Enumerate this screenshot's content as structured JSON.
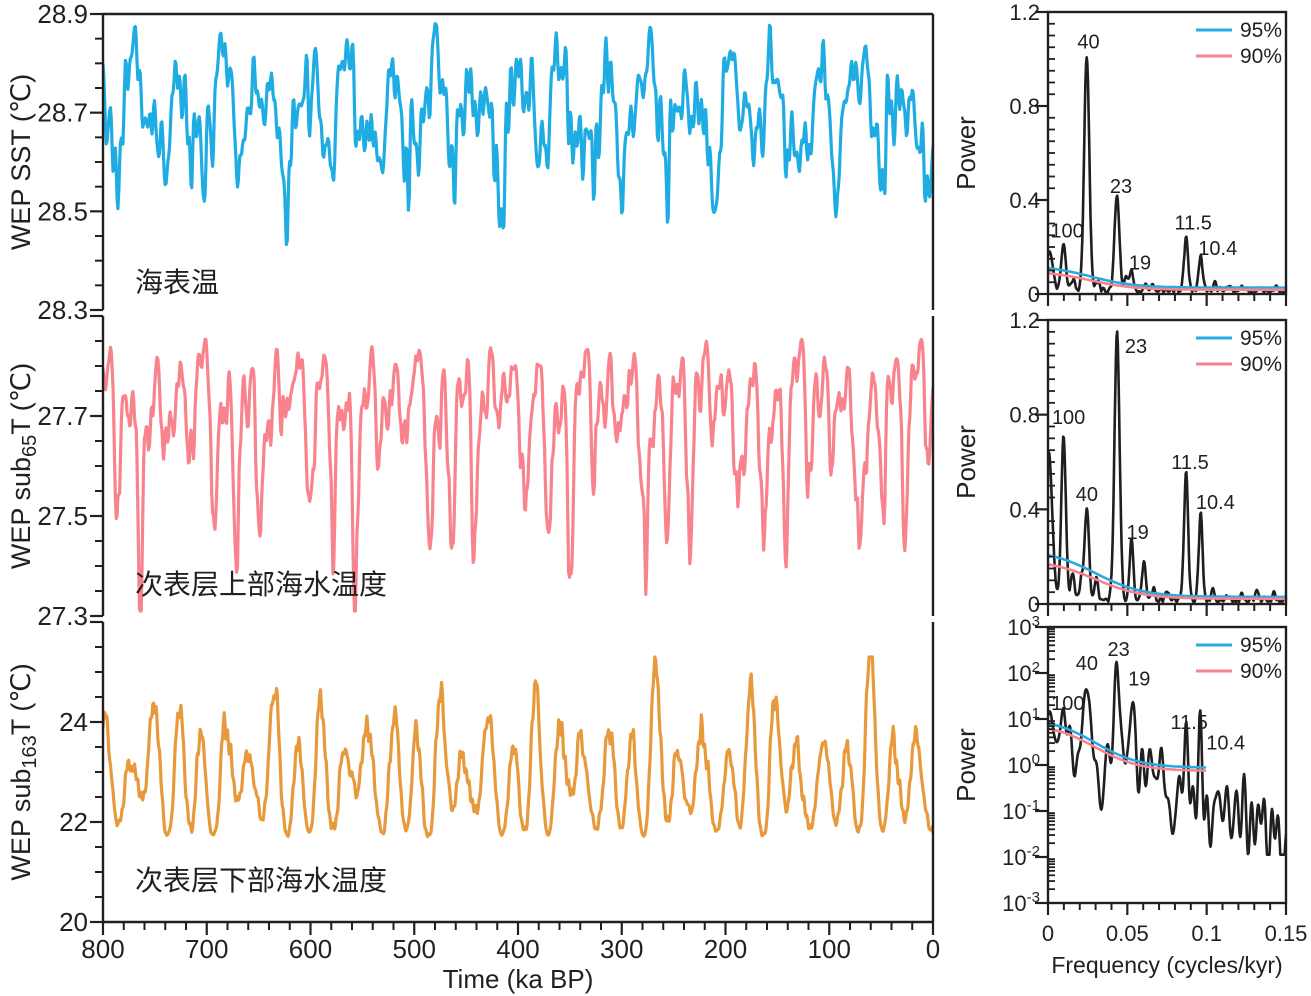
{
  "colors": {
    "sst": "#1FACE3",
    "sub65": "#F8838D",
    "sub163": "#E8993C",
    "spectrum": "#1F1F1F",
    "sig95": "#29ABE2",
    "sig90": "#F8838D",
    "text": "#231F20",
    "axis": "#231F20",
    "background": "#FFFFFF"
  },
  "time_axis": {
    "title": "Time (ka BP)",
    "min": 0,
    "max": 800,
    "reversed": true,
    "tick_labels": [
      "800",
      "700",
      "600",
      "500",
      "400",
      "300",
      "200",
      "100",
      "0"
    ],
    "major_step": 100,
    "minor_step": 20
  },
  "freq_axis": {
    "title": "Frequency (cycles/kyr)",
    "min": 0,
    "max": 0.15,
    "tick_labels": [
      "0",
      "0.05",
      "0.1",
      "0.15"
    ],
    "major_step": 0.05,
    "minor_step": 0.01
  },
  "chart_data": [
    {
      "id": "wep-sst",
      "type": "line",
      "role": "time-series",
      "ylabel": {
        "pre": "WEP SST",
        "sub": "",
        "post": " (℃)"
      },
      "annotation": "海表温",
      "color_key": "sst",
      "ylim": [
        28.3,
        28.9
      ],
      "ytick_labels": [
        "28.9",
        "28.7",
        "28.5",
        "28.3"
      ],
      "y_major_step": 0.2,
      "y_minor_step": 0.05,
      "synth": {
        "seed": 11,
        "mean": 28.7,
        "clip": [
          28.42,
          28.88
        ],
        "skew": 0.8,
        "noise": 0.012,
        "components": [
          [
            100,
            0.032
          ],
          [
            41,
            0.085
          ],
          [
            29,
            0.025
          ],
          [
            23,
            0.045
          ],
          [
            19,
            0.018
          ],
          [
            11.5,
            0.032
          ],
          [
            10.4,
            0.02
          ],
          [
            7.3,
            0.012
          ],
          [
            5.1,
            0.009
          ]
        ]
      }
    },
    {
      "id": "wep-sub65t",
      "type": "line",
      "role": "time-series",
      "ylabel": {
        "pre": "WEP sub",
        "sub": "65",
        "post": "T (℃)"
      },
      "annotation": "次表层上部海水温度",
      "color_key": "sub65",
      "ylim": [
        27.3,
        27.9
      ],
      "ytick_labels": [
        "27.7",
        "27.5",
        "27.3"
      ],
      "y_major_step": 0.2,
      "y_minor_step": 0.05,
      "synth": {
        "seed": 23,
        "mean": 27.7,
        "clip": [
          27.31,
          27.895
        ],
        "skew": 1.5,
        "noise": 0.01,
        "components": [
          [
            100,
            0.05
          ],
          [
            41,
            0.042
          ],
          [
            23,
            0.105
          ],
          [
            19,
            0.032
          ],
          [
            11.5,
            0.05
          ],
          [
            10.4,
            0.034
          ],
          [
            6.4,
            0.014
          ],
          [
            4.7,
            0.01
          ]
        ]
      }
    },
    {
      "id": "wep-sub163t",
      "type": "line",
      "role": "time-series",
      "ylabel": {
        "pre": "WEP sub",
        "sub": "163",
        "post": "T (℃)"
      },
      "annotation": "次表层下部海水温度",
      "color_key": "sub163",
      "ylim": [
        20,
        26
      ],
      "ytick_labels": [
        "24",
        "22",
        "20"
      ],
      "y_major_step": 2,
      "y_minor_step": 0.5,
      "synth": {
        "seed": 5,
        "mean": 22.75,
        "clip": [
          21.35,
          25.3
        ],
        "skew": -0.23,
        "noise": 0.05,
        "components": [
          [
            100,
            0.2
          ],
          [
            41,
            0.4
          ],
          [
            29,
            0.12
          ],
          [
            23,
            1.0
          ],
          [
            19,
            0.28
          ],
          [
            11.5,
            0.1
          ],
          [
            6.1,
            0.05
          ]
        ]
      }
    },
    {
      "id": "sst-spectrum",
      "type": "line",
      "role": "power-spectrum",
      "scale": "linear",
      "ylabel": "Power",
      "ylim": [
        0,
        1.2
      ],
      "ytick_labels": [
        "1.2",
        "0.8",
        "0.4",
        "0"
      ],
      "y_major_step": 0.4,
      "y_minor_step": 0.05,
      "legend": [
        {
          "label": "95%",
          "color_key": "sig95"
        },
        {
          "label": "90%",
          "color_key": "sig90"
        }
      ],
      "peaks_labeled": [
        {
          "label": "100",
          "f": 0.0098,
          "power": 0.21
        },
        {
          "label": "40",
          "f": 0.0244,
          "power": 1.02
        },
        {
          "label": "23",
          "f": 0.0435,
          "power": 0.41
        },
        {
          "label": "19",
          "f": 0.0526,
          "power": 0.1
        },
        {
          "label": "11.5",
          "f": 0.087,
          "power": 0.22
        },
        {
          "label": "10.4",
          "f": 0.0962,
          "power": 0.15
        }
      ],
      "annotations": [
        {
          "label": "100",
          "f": 0.012,
          "power": 0.27
        },
        {
          "label": "40",
          "f": 0.0255,
          "power": 1.075
        },
        {
          "label": "23",
          "f": 0.046,
          "power": 0.46
        },
        {
          "label": "19",
          "f": 0.058,
          "power": 0.135
        },
        {
          "label": "11.5",
          "f": 0.0915,
          "power": 0.305
        },
        {
          "label": "10.4",
          "f": 0.107,
          "power": 0.195
        }
      ],
      "render": {
        "floor": 0.006,
        "noise_seed": 31,
        "noise_amp": 0.006,
        "bumps": [
          [
            0.001,
            0.17,
            0.002
          ],
          [
            0.0098,
            0.205,
            0.0014
          ],
          [
            0.016,
            0.05,
            0.0012
          ],
          [
            0.0244,
            1.0,
            0.0016
          ],
          [
            0.031,
            0.04,
            0.0012
          ],
          [
            0.0435,
            0.41,
            0.0015
          ],
          [
            0.0495,
            0.06,
            0.001
          ],
          [
            0.0526,
            0.095,
            0.0011
          ],
          [
            0.0615,
            0.035,
            0.0011
          ],
          [
            0.066,
            0.03,
            0.001
          ],
          [
            0.087,
            0.22,
            0.0013
          ],
          [
            0.0962,
            0.15,
            0.0012
          ],
          [
            0.105,
            0.03,
            0.001
          ],
          [
            0.113,
            0.02,
            0.001
          ],
          [
            0.1225,
            0.018,
            0.001
          ],
          [
            0.1335,
            0.015,
            0.001
          ],
          [
            0.1435,
            0.015,
            0.001
          ]
        ]
      },
      "significance": {
        "c95": {
          "a": 0.095,
          "c": 0.027,
          "m": 0.027,
          "s": 0.014,
          "fmax": 0.15
        },
        "c90": {
          "a": 0.08,
          "c": 0.018,
          "m": 0.027,
          "s": 0.014,
          "fmax": 0.15
        }
      }
    },
    {
      "id": "sub65t-spectrum",
      "type": "line",
      "role": "power-spectrum",
      "scale": "linear",
      "ylabel": "Power",
      "ylim": [
        0,
        1.2
      ],
      "ytick_labels": [
        "1.2",
        "0.8",
        "0.4",
        "0"
      ],
      "y_major_step": 0.4,
      "y_minor_step": 0.05,
      "legend": [
        {
          "label": "95%",
          "color_key": "sig95"
        },
        {
          "label": "90%",
          "color_key": "sig90"
        }
      ],
      "peaks_labeled": [
        {
          "label": "100",
          "f": 0.0098,
          "power": 0.72
        },
        {
          "label": "40",
          "f": 0.0244,
          "power": 0.4
        },
        {
          "label": "23",
          "f": 0.0435,
          "power": 1.15
        },
        {
          "label": "19",
          "f": 0.0526,
          "power": 0.26
        },
        {
          "label": "11.5",
          "f": 0.087,
          "power": 0.54
        },
        {
          "label": "10.4",
          "f": 0.0962,
          "power": 0.37
        }
      ],
      "annotations": [
        {
          "label": "100",
          "f": 0.013,
          "power": 0.79
        },
        {
          "label": "40",
          "f": 0.0245,
          "power": 0.465
        },
        {
          "label": "23",
          "f": 0.0555,
          "power": 1.09
        },
        {
          "label": "19",
          "f": 0.0565,
          "power": 0.305
        },
        {
          "label": "11.5",
          "f": 0.0895,
          "power": 0.6
        },
        {
          "label": "10.4",
          "f": 0.1055,
          "power": 0.43
        }
      ],
      "render": {
        "floor": 0.006,
        "noise_seed": 47,
        "noise_amp": 0.006,
        "bumps": [
          [
            0.0005,
            0.62,
            0.0022
          ],
          [
            0.0098,
            0.7,
            0.0014
          ],
          [
            0.0155,
            0.12,
            0.0012
          ],
          [
            0.021,
            0.09,
            0.001
          ],
          [
            0.0244,
            0.385,
            0.0014
          ],
          [
            0.0305,
            0.09,
            0.0011
          ],
          [
            0.0435,
            1.13,
            0.0016
          ],
          [
            0.0526,
            0.25,
            0.0012
          ],
          [
            0.0605,
            0.17,
            0.0012
          ],
          [
            0.0665,
            0.05,
            0.001
          ],
          [
            0.0755,
            0.04,
            0.001
          ],
          [
            0.087,
            0.53,
            0.0013
          ],
          [
            0.0962,
            0.36,
            0.0012
          ],
          [
            0.104,
            0.05,
            0.001
          ],
          [
            0.1125,
            0.025,
            0.001
          ],
          [
            0.1225,
            0.02,
            0.001
          ],
          [
            0.1315,
            0.03,
            0.001
          ],
          [
            0.1425,
            0.02,
            0.001
          ]
        ]
      },
      "significance": {
        "c95": {
          "a": 0.2,
          "c": 0.03,
          "m": 0.03,
          "s": 0.015,
          "fmax": 0.15
        },
        "c90": {
          "a": 0.165,
          "c": 0.022,
          "m": 0.03,
          "s": 0.015,
          "fmax": 0.15
        }
      }
    },
    {
      "id": "sub163t-spectrum",
      "type": "line",
      "role": "power-spectrum",
      "scale": "log",
      "ylabel": "Power",
      "ylim_exponents": [
        -3,
        3
      ],
      "ytick_labels": [
        "10³",
        "10²",
        "10¹",
        "10⁰",
        "10⁻¹",
        "10⁻²",
        "10⁻³"
      ],
      "legend": [
        {
          "label": "95%",
          "color_key": "sig95"
        },
        {
          "label": "90%",
          "color_key": "sig90"
        }
      ],
      "peaks_labeled": [
        {
          "label": "100",
          "f": 0.0098,
          "power": 12
        },
        {
          "label": "40",
          "f": 0.0244,
          "power": 85
        },
        {
          "label": "23",
          "f": 0.0435,
          "power": 160
        },
        {
          "label": "19",
          "f": 0.0526,
          "power": 40
        },
        {
          "label": "11.5",
          "f": 0.087,
          "power": 4.2
        },
        {
          "label": "10.4",
          "f": 0.0962,
          "power": 2.7
        }
      ],
      "annotations": [
        {
          "label": "100",
          "f": 0.0125,
          "power": 22
        },
        {
          "label": "40",
          "f": 0.0245,
          "power": 165
        },
        {
          "label": "23",
          "f": 0.0445,
          "power": 330
        },
        {
          "label": "19",
          "f": 0.0575,
          "power": 75
        },
        {
          "label": "11.5",
          "f": 0.089,
          "power": 8.5
        },
        {
          "label": "10.4",
          "f": 0.112,
          "power": 3.1
        }
      ],
      "render": {
        "base0": 0.97,
        "slope": -18,
        "noise_seed": 77,
        "noise_amp": 0.5,
        "bumps": [
          [
            0.0,
            0.1,
            0.003
          ],
          [
            0.0098,
            0.32,
            0.0014
          ],
          [
            0.0244,
            1.35,
            0.0016
          ],
          [
            0.0435,
            1.95,
            0.0016
          ],
          [
            0.0526,
            1.52,
            0.0013
          ],
          [
            0.065,
            0.45,
            0.0012
          ],
          [
            0.0715,
            0.32,
            0.001
          ],
          [
            0.087,
            1.17,
            0.0013
          ],
          [
            0.0962,
            1.16,
            0.0012
          ],
          [
            0.1065,
            0.3,
            0.001
          ],
          [
            0.1135,
            0.35,
            0.001
          ],
          [
            0.1225,
            0.5,
            0.0012
          ],
          [
            0.1315,
            0.45,
            0.0012
          ],
          [
            0.1385,
            0.3,
            0.001
          ],
          [
            0.144,
            0.28,
            0.001
          ],
          [
            0.0055,
            -0.5,
            0.0012
          ],
          [
            0.0175,
            -0.85,
            0.0016
          ],
          [
            0.033,
            -1.2,
            0.002
          ],
          [
            0.0785,
            -1.25,
            0.0013
          ],
          [
            0.102,
            -0.6,
            0.0012
          ],
          [
            0.1475,
            -0.55,
            0.0011
          ]
        ]
      },
      "significance": {
        "c95": {
          "a": 1.08,
          "c": -0.06,
          "m": 0.03,
          "s": 0.014,
          "fmax": 0.1
        },
        "c90": {
          "a": 1.03,
          "c": -0.13,
          "m": 0.03,
          "s": 0.014,
          "fmax": 0.1
        }
      }
    }
  ]
}
